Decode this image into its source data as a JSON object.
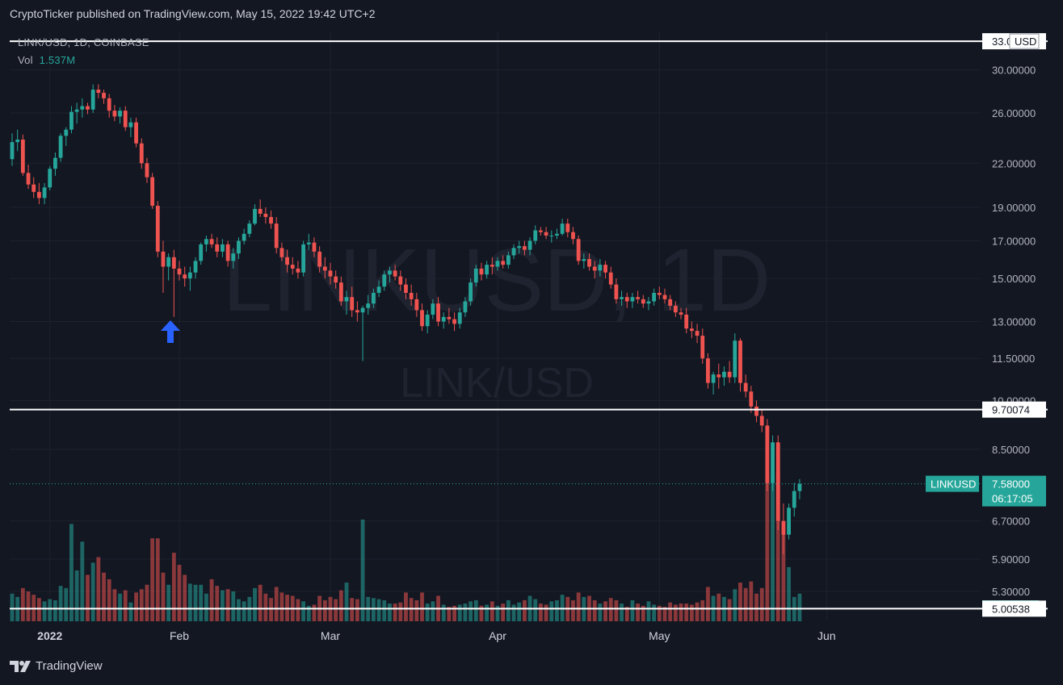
{
  "publisher": "CryptoTicker published on TradingView.com, May 15, 2022 19:42 UTC+2",
  "legend": {
    "symbol": "LINK/USD, 1D, COINBASE",
    "vol_label": "Vol",
    "vol_value": "1.537M"
  },
  "watermark": {
    "main": "LINKUSD, 1D",
    "sub": "LINK/USD"
  },
  "footer": {
    "brand": "TradingView",
    "logo_icon": "tradingview-logo-icon"
  },
  "annotation": {
    "icon": "blue-up-arrow-icon",
    "date": "2022-01-20",
    "color": "#2962ff"
  },
  "colors": {
    "up": "#26a69a",
    "down": "#ef5350",
    "background": "#131722",
    "grid": "#1e222d",
    "line": "#ffffff"
  },
  "chart_data": {
    "type": "candlestick",
    "symbol": "LINK/USD",
    "interval": "1D",
    "exchange": "COINBASE",
    "y_scale": "log",
    "ylim": [
      4.8,
      34
    ],
    "xlim": [
      "2022-01-01",
      "2022-06-30"
    ],
    "x_ticks": [
      {
        "label": "2022",
        "date": "2022-01-08"
      },
      {
        "label": "Feb",
        "date": "2022-02-01"
      },
      {
        "label": "Mar",
        "date": "2022-03-01"
      },
      {
        "label": "Apr",
        "date": "2022-04-01"
      },
      {
        "label": "May",
        "date": "2022-05-01"
      },
      {
        "label": "Jun",
        "date": "2022-06-01"
      }
    ],
    "y_ticks": [
      "30.00000",
      "26.00000",
      "22.00000",
      "19.00000",
      "17.00000",
      "15.00000",
      "13.00000",
      "11.50000",
      "10.00000",
      "8.50000",
      "6.70000",
      "5.90000",
      "5.30000"
    ],
    "horizontal_lines": [
      {
        "value": 33.0,
        "label": "33.00996"
      },
      {
        "value": 9.70074,
        "label": "9.70074"
      },
      {
        "value": 5.00538,
        "label": "5.00538"
      }
    ],
    "last_price": {
      "symbol": "LINKUSD",
      "value": 7.58,
      "label": "7.58000",
      "countdown": "06:17:05"
    },
    "axis_currency": "USD",
    "volume_label": "1.537M",
    "candles": [
      [
        "2022-01-01",
        22.3,
        24.3,
        21.8,
        23.6,
        2.5
      ],
      [
        "2022-01-02",
        23.6,
        24.6,
        22.9,
        23.8,
        2.2
      ],
      [
        "2022-01-03",
        23.8,
        24.2,
        21.1,
        21.3,
        3.0
      ],
      [
        "2022-01-04",
        21.3,
        21.9,
        20.2,
        20.5,
        2.7
      ],
      [
        "2022-01-05",
        20.5,
        21.0,
        19.6,
        20.0,
        2.4
      ],
      [
        "2022-01-06",
        20.0,
        20.6,
        19.2,
        19.6,
        2.1
      ],
      [
        "2022-01-07",
        19.6,
        20.6,
        19.2,
        20.3,
        1.8
      ],
      [
        "2022-01-08",
        20.3,
        21.8,
        20.1,
        21.6,
        2.0
      ],
      [
        "2022-01-09",
        21.6,
        22.8,
        21.1,
        22.4,
        1.9
      ],
      [
        "2022-01-10",
        22.4,
        24.3,
        22.1,
        24.1,
        3.2
      ],
      [
        "2022-01-11",
        24.1,
        24.8,
        23.3,
        24.6,
        3.0
      ],
      [
        "2022-01-12",
        24.6,
        26.6,
        24.3,
        26.1,
        8.8
      ],
      [
        "2022-01-13",
        26.1,
        26.9,
        25.1,
        26.3,
        4.6
      ],
      [
        "2022-01-14",
        26.3,
        27.3,
        25.6,
        26.6,
        7.2
      ],
      [
        "2022-01-15",
        26.6,
        26.9,
        25.9,
        26.3,
        4.2
      ],
      [
        "2022-01-16",
        26.3,
        28.6,
        26.0,
        28.1,
        5.3
      ],
      [
        "2022-01-17",
        28.1,
        28.6,
        27.3,
        27.8,
        5.8
      ],
      [
        "2022-01-18",
        27.8,
        28.1,
        26.8,
        27.3,
        4.4
      ],
      [
        "2022-01-19",
        27.3,
        27.7,
        25.6,
        26.2,
        3.8
      ],
      [
        "2022-01-20",
        26.2,
        26.7,
        25.3,
        25.7,
        2.9
      ],
      [
        "2022-01-21",
        25.7,
        26.5,
        25.1,
        26.2,
        2.5
      ],
      [
        "2022-01-22",
        26.2,
        26.6,
        24.5,
        24.8,
        2.8
      ],
      [
        "2022-01-23",
        24.8,
        25.6,
        24.0,
        25.2,
        1.7
      ],
      [
        "2022-01-24",
        25.2,
        25.6,
        23.2,
        23.5,
        2.6
      ],
      [
        "2022-01-25",
        23.5,
        23.9,
        21.6,
        22.0,
        2.9
      ],
      [
        "2022-01-26",
        22.0,
        22.4,
        20.6,
        21.0,
        3.3
      ],
      [
        "2022-01-27",
        21.0,
        21.3,
        18.9,
        19.1,
        7.5
      ],
      [
        "2022-01-28",
        19.1,
        19.4,
        16.1,
        16.4,
        7.5
      ],
      [
        "2022-01-29",
        16.4,
        17.0,
        14.3,
        15.6,
        4.4
      ],
      [
        "2022-01-30",
        15.6,
        16.3,
        14.9,
        16.1,
        3.3
      ],
      [
        "2022-01-31",
        16.1,
        16.5,
        13.2,
        15.5,
        6.2
      ],
      [
        "2022-02-01",
        15.5,
        15.9,
        14.9,
        15.2,
        5.1
      ],
      [
        "2022-02-02",
        15.2,
        15.6,
        14.6,
        15.0,
        4.2
      ],
      [
        "2022-02-03",
        15.0,
        15.6,
        14.4,
        15.3,
        3.4
      ],
      [
        "2022-02-04",
        15.3,
        16.1,
        15.0,
        15.9,
        3.3
      ],
      [
        "2022-02-05",
        15.9,
        16.9,
        15.7,
        16.8,
        3.3
      ],
      [
        "2022-02-06",
        16.8,
        17.3,
        16.4,
        17.1,
        2.5
      ],
      [
        "2022-02-07",
        17.1,
        17.4,
        16.6,
        16.8,
        3.8
      ],
      [
        "2022-02-08",
        16.8,
        17.2,
        16.1,
        16.4,
        3.2
      ],
      [
        "2022-02-09",
        16.4,
        17.1,
        16.1,
        16.8,
        2.8
      ],
      [
        "2022-02-10",
        16.8,
        17.0,
        15.6,
        15.9,
        2.9
      ],
      [
        "2022-02-11",
        15.9,
        16.6,
        15.5,
        16.3,
        2.7
      ],
      [
        "2022-02-12",
        16.3,
        17.2,
        16.0,
        17.0,
        2.0
      ],
      [
        "2022-02-13",
        17.0,
        17.7,
        16.8,
        17.4,
        1.8
      ],
      [
        "2022-02-14",
        17.4,
        18.2,
        17.2,
        18.0,
        2.2
      ],
      [
        "2022-02-15",
        18.0,
        19.2,
        17.9,
        18.9,
        3.0
      ],
      [
        "2022-02-16",
        18.9,
        19.5,
        18.4,
        18.6,
        3.3
      ],
      [
        "2022-02-17",
        18.6,
        19.0,
        18.0,
        18.4,
        2.5
      ],
      [
        "2022-02-18",
        18.4,
        18.8,
        17.7,
        18.0,
        2.1
      ],
      [
        "2022-02-19",
        18.0,
        18.4,
        16.3,
        16.6,
        3.1
      ],
      [
        "2022-02-20",
        16.6,
        16.9,
        15.9,
        16.1,
        2.6
      ],
      [
        "2022-02-21",
        16.1,
        16.5,
        15.3,
        15.7,
        2.4
      ],
      [
        "2022-02-22",
        15.7,
        16.1,
        15.2,
        15.5,
        2.3
      ],
      [
        "2022-02-23",
        15.5,
        15.9,
        15.0,
        15.3,
        2.0
      ],
      [
        "2022-02-24",
        15.3,
        17.0,
        15.1,
        16.8,
        1.8
      ],
      [
        "2022-02-25",
        16.8,
        17.4,
        16.5,
        16.9,
        1.4
      ],
      [
        "2022-02-26",
        16.9,
        17.2,
        16.1,
        16.4,
        1.5
      ],
      [
        "2022-02-27",
        16.4,
        16.7,
        15.3,
        15.6,
        2.3
      ],
      [
        "2022-02-28",
        15.6,
        16.1,
        15.0,
        15.4,
        1.9
      ],
      [
        "2022-03-01",
        15.4,
        15.8,
        14.7,
        15.1,
        2.2
      ],
      [
        "2022-03-02",
        15.1,
        15.4,
        14.5,
        14.8,
        2.0
      ],
      [
        "2022-03-03",
        14.8,
        15.1,
        13.7,
        13.9,
        2.8
      ],
      [
        "2022-03-04",
        13.9,
        14.4,
        13.3,
        14.1,
        3.5
      ],
      [
        "2022-03-05",
        14.1,
        14.6,
        13.2,
        13.5,
        2.1
      ],
      [
        "2022-03-06",
        13.5,
        13.9,
        13.0,
        13.4,
        2.0
      ],
      [
        "2022-03-07",
        13.4,
        13.7,
        11.4,
        13.6,
        9.2
      ],
      [
        "2022-03-08",
        13.6,
        14.2,
        13.3,
        13.8,
        2.2
      ],
      [
        "2022-03-09",
        13.8,
        14.5,
        13.6,
        14.3,
        2.1
      ],
      [
        "2022-03-10",
        14.3,
        14.9,
        14.1,
        14.6,
        2.0
      ],
      [
        "2022-03-11",
        14.6,
        15.4,
        14.4,
        15.2,
        1.9
      ],
      [
        "2022-03-12",
        15.2,
        15.6,
        14.8,
        15.4,
        1.6
      ],
      [
        "2022-03-13",
        15.4,
        15.7,
        14.9,
        15.1,
        1.6
      ],
      [
        "2022-03-14",
        15.1,
        15.4,
        14.4,
        14.7,
        1.7
      ],
      [
        "2022-03-15",
        14.7,
        15.0,
        14.0,
        14.3,
        2.6
      ],
      [
        "2022-03-16",
        14.3,
        14.7,
        13.7,
        14.0,
        2.1
      ],
      [
        "2022-03-17",
        14.0,
        14.3,
        13.2,
        13.5,
        1.9
      ],
      [
        "2022-03-18",
        13.5,
        13.8,
        12.6,
        12.8,
        2.6
      ],
      [
        "2022-03-19",
        12.8,
        13.5,
        12.5,
        13.3,
        1.6
      ],
      [
        "2022-03-20",
        13.3,
        14.0,
        13.1,
        13.8,
        1.8
      ],
      [
        "2022-03-21",
        13.8,
        14.1,
        12.8,
        13.0,
        2.3
      ],
      [
        "2022-03-22",
        13.0,
        13.4,
        12.7,
        13.2,
        1.5
      ],
      [
        "2022-03-23",
        13.2,
        13.6,
        12.9,
        13.1,
        1.3
      ],
      [
        "2022-03-24",
        13.1,
        13.4,
        12.6,
        12.9,
        1.4
      ],
      [
        "2022-03-25",
        12.9,
        13.6,
        12.7,
        13.4,
        1.5
      ],
      [
        "2022-03-26",
        13.4,
        14.1,
        13.2,
        13.9,
        1.6
      ],
      [
        "2022-03-27",
        13.9,
        15.0,
        13.7,
        14.8,
        1.8
      ],
      [
        "2022-03-28",
        14.8,
        15.7,
        14.6,
        15.5,
        1.9
      ],
      [
        "2022-03-29",
        15.5,
        15.8,
        14.9,
        15.2,
        1.4
      ],
      [
        "2022-03-30",
        15.2,
        15.9,
        15.0,
        15.7,
        1.5
      ],
      [
        "2022-03-31",
        15.7,
        16.1,
        15.2,
        15.6,
        1.8
      ],
      [
        "2022-04-01",
        15.6,
        16.1,
        15.4,
        15.9,
        1.4
      ],
      [
        "2022-04-02",
        15.9,
        16.2,
        15.5,
        15.7,
        1.6
      ],
      [
        "2022-04-03",
        15.7,
        16.4,
        15.5,
        16.2,
        1.9
      ],
      [
        "2022-04-04",
        16.2,
        16.8,
        16.0,
        16.6,
        1.5
      ],
      [
        "2022-04-05",
        16.6,
        17.0,
        16.3,
        16.7,
        1.7
      ],
      [
        "2022-04-06",
        16.7,
        17.0,
        16.2,
        16.5,
        1.9
      ],
      [
        "2022-04-07",
        16.5,
        17.2,
        16.2,
        17.0,
        2.3
      ],
      [
        "2022-04-08",
        17.0,
        17.9,
        16.8,
        17.6,
        2.0
      ],
      [
        "2022-04-09",
        17.6,
        17.8,
        17.3,
        17.5,
        1.6
      ],
      [
        "2022-04-10",
        17.5,
        17.8,
        17.1,
        17.3,
        1.5
      ],
      [
        "2022-04-11",
        17.3,
        17.6,
        16.9,
        17.3,
        1.8
      ],
      [
        "2022-04-12",
        17.3,
        17.7,
        17.1,
        17.4,
        1.9
      ],
      [
        "2022-04-13",
        17.4,
        18.3,
        17.3,
        18.0,
        2.4
      ],
      [
        "2022-04-14",
        18.0,
        18.3,
        17.2,
        17.5,
        2.2
      ],
      [
        "2022-04-15",
        17.5,
        17.8,
        16.8,
        17.1,
        1.9
      ],
      [
        "2022-04-16",
        17.1,
        17.3,
        15.7,
        15.9,
        2.6
      ],
      [
        "2022-04-17",
        15.9,
        16.3,
        15.5,
        16.0,
        2.2
      ],
      [
        "2022-04-18",
        16.0,
        16.3,
        15.4,
        15.6,
        2.3
      ],
      [
        "2022-04-19",
        15.6,
        15.9,
        15.0,
        15.4,
        1.9
      ],
      [
        "2022-04-20",
        15.4,
        16.0,
        15.1,
        15.7,
        1.6
      ],
      [
        "2022-04-21",
        15.7,
        15.9,
        15.0,
        15.3,
        1.8
      ],
      [
        "2022-04-22",
        15.3,
        15.6,
        14.5,
        14.7,
        2.1
      ],
      [
        "2022-04-23",
        14.7,
        15.0,
        13.8,
        14.0,
        1.9
      ],
      [
        "2022-04-24",
        14.0,
        14.4,
        13.7,
        14.1,
        1.6
      ],
      [
        "2022-04-25",
        14.1,
        14.3,
        13.6,
        13.9,
        1.3
      ],
      [
        "2022-04-26",
        13.9,
        14.3,
        13.6,
        14.1,
        1.9
      ],
      [
        "2022-04-27",
        14.1,
        14.4,
        13.8,
        14.0,
        1.6
      ],
      [
        "2022-04-28",
        14.0,
        14.2,
        13.6,
        13.8,
        1.4
      ],
      [
        "2022-04-29",
        13.8,
        14.1,
        13.5,
        13.9,
        1.8
      ],
      [
        "2022-04-30",
        13.9,
        14.5,
        13.7,
        14.3,
        1.5
      ],
      [
        "2022-05-01",
        14.3,
        14.6,
        14.0,
        14.2,
        1.4
      ],
      [
        "2022-05-02",
        14.2,
        14.5,
        13.8,
        14.0,
        1.3
      ],
      [
        "2022-05-03",
        14.0,
        14.2,
        13.5,
        13.7,
        1.7
      ],
      [
        "2022-05-04",
        13.7,
        13.9,
        13.2,
        13.4,
        1.5
      ],
      [
        "2022-05-05",
        13.4,
        13.6,
        13.1,
        13.3,
        1.6
      ],
      [
        "2022-05-06",
        13.3,
        13.6,
        12.5,
        12.7,
        1.6
      ],
      [
        "2022-05-07",
        12.7,
        13.0,
        12.3,
        12.6,
        1.5
      ],
      [
        "2022-05-08",
        12.6,
        12.9,
        12.1,
        12.4,
        1.7
      ],
      [
        "2022-05-09",
        12.4,
        12.7,
        11.3,
        11.5,
        1.9
      ],
      [
        "2022-05-10",
        11.5,
        11.7,
        10.4,
        10.6,
        3.1
      ],
      [
        "2022-05-11",
        10.6,
        11.0,
        10.2,
        10.9,
        2.3
      ],
      [
        "2022-05-12",
        10.9,
        11.3,
        10.4,
        10.8,
        2.5
      ],
      [
        "2022-05-13",
        10.8,
        11.2,
        10.5,
        11.0,
        2.2
      ],
      [
        "2022-05-14",
        11.0,
        11.4,
        10.6,
        10.8,
        2.0
      ],
      [
        "2022-05-15",
        10.8,
        12.5,
        10.6,
        12.2,
        2.9
      ],
      [
        "2022-05-16",
        12.2,
        12.3,
        10.3,
        10.6,
        3.5
      ],
      [
        "2022-05-17",
        10.6,
        10.9,
        10.1,
        10.3,
        3.0
      ],
      [
        "2022-05-18",
        10.3,
        10.5,
        9.6,
        9.8,
        3.6
      ],
      [
        "2022-05-19",
        9.8,
        10.0,
        9.3,
        9.5,
        2.5
      ],
      [
        "2022-05-20",
        9.5,
        9.7,
        9.0,
        9.2,
        3.0
      ],
      [
        "2022-05-21",
        9.2,
        9.4,
        7.4,
        7.6,
        13.5
      ],
      [
        "2022-05-22",
        7.6,
        8.9,
        7.4,
        8.7,
        13.0
      ],
      [
        "2022-05-23",
        8.7,
        8.9,
        6.5,
        6.7,
        13.5
      ],
      [
        "2022-05-24",
        6.7,
        7.1,
        6.0,
        6.4,
        9.0
      ],
      [
        "2022-05-25",
        6.4,
        7.1,
        6.3,
        7.0,
        4.9
      ],
      [
        "2022-05-26",
        7.0,
        7.6,
        6.8,
        7.4,
        2.2
      ],
      [
        "2022-05-27",
        7.4,
        7.7,
        7.2,
        7.58,
        2.5
      ]
    ]
  }
}
